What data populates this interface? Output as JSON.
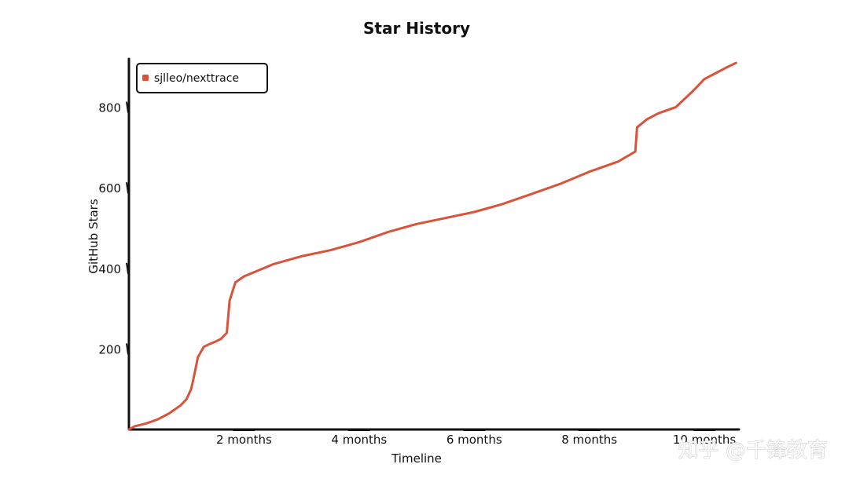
{
  "watermark": "知乎 @千锋教育",
  "chart_data": {
    "type": "line",
    "title": "Star History",
    "xlabel": "Timeline",
    "ylabel": "GitHub Stars",
    "x_unit": "months",
    "xlim": [
      0,
      10.6
    ],
    "ylim": [
      0,
      920
    ],
    "x_ticks": [
      {
        "value": 2,
        "label": "2 months"
      },
      {
        "value": 4,
        "label": "4 months"
      },
      {
        "value": 6,
        "label": "6 months"
      },
      {
        "value": 8,
        "label": "8 months"
      },
      {
        "value": 10,
        "label": "10 months"
      }
    ],
    "y_ticks": [
      {
        "value": 200,
        "label": "200"
      },
      {
        "value": 400,
        "label": "400"
      },
      {
        "value": 600,
        "label": "600"
      },
      {
        "value": 800,
        "label": "800"
      }
    ],
    "grid": false,
    "legend_position": "top-left",
    "series": [
      {
        "name": "sjlleo/nexttrace",
        "color": "#d9533a",
        "x": [
          0,
          0.1,
          0.3,
          0.5,
          0.7,
          0.9,
          1.0,
          1.08,
          1.12,
          1.2,
          1.3,
          1.4,
          1.5,
          1.6,
          1.7,
          1.75,
          1.85,
          2.0,
          2.5,
          3.0,
          3.5,
          4.0,
          4.5,
          5.0,
          5.5,
          6.0,
          6.5,
          7.0,
          7.5,
          8.0,
          8.5,
          8.8,
          8.83,
          9.0,
          9.2,
          9.5,
          9.8,
          10.0,
          10.2,
          10.4,
          10.55
        ],
        "y": [
          0,
          8,
          15,
          25,
          40,
          60,
          75,
          100,
          125,
          180,
          205,
          212,
          218,
          225,
          240,
          320,
          365,
          380,
          410,
          430,
          445,
          465,
          490,
          510,
          525,
          540,
          560,
          585,
          610,
          640,
          665,
          690,
          750,
          770,
          785,
          800,
          840,
          870,
          885,
          900,
          910
        ]
      }
    ]
  }
}
